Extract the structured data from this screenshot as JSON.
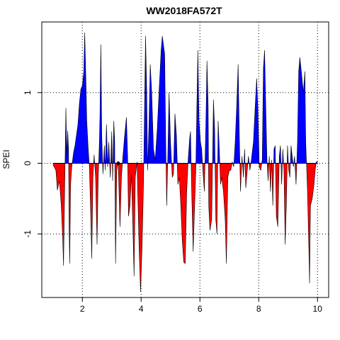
{
  "chart_data": {
    "type": "area",
    "title": "WW2018FA572T",
    "xlabel": "",
    "ylabel": "SPEI",
    "xlim": [
      0.62,
      10.38
    ],
    "ylim": [
      -1.9,
      2.0
    ],
    "x_ticks": [
      2,
      4,
      6,
      8,
      10
    ],
    "y_ticks": [
      -1,
      0,
      1
    ],
    "grid": "dotted, at ticks",
    "positive_color": "#0000ff",
    "negative_color": "#ff0000",
    "zero_line_color": "#000000",
    "series": [
      {
        "values": [
          [
            1.0,
            -0.02
          ],
          [
            1.1,
            -0.1
          ],
          [
            1.15,
            -0.38
          ],
          [
            1.22,
            -0.25
          ],
          [
            1.28,
            -0.58
          ],
          [
            1.33,
            -1.05
          ],
          [
            1.36,
            -1.45
          ],
          [
            1.4,
            -0.3
          ],
          [
            1.44,
            0.78
          ],
          [
            1.47,
            0.1
          ],
          [
            1.5,
            0.46
          ],
          [
            1.53,
            0.2
          ],
          [
            1.55,
            -0.9
          ],
          [
            1.57,
            -1.42
          ],
          [
            1.6,
            -0.3
          ],
          [
            1.64,
            -0.05
          ],
          [
            1.7,
            0.15
          ],
          [
            1.75,
            0.25
          ],
          [
            1.85,
            0.55
          ],
          [
            1.9,
            0.85
          ],
          [
            1.95,
            1.05
          ],
          [
            2.0,
            1.1
          ],
          [
            2.05,
            1.3
          ],
          [
            2.08,
            1.85
          ],
          [
            2.12,
            1.2
          ],
          [
            2.15,
            0.6
          ],
          [
            2.2,
            0.2
          ],
          [
            2.24,
            -0.05
          ],
          [
            2.28,
            -0.65
          ],
          [
            2.32,
            -1.35
          ],
          [
            2.36,
            -0.2
          ],
          [
            2.4,
            0.12
          ],
          [
            2.45,
            -0.2
          ],
          [
            2.5,
            -1.15
          ],
          [
            2.54,
            -0.2
          ],
          [
            2.58,
            0.3
          ],
          [
            2.6,
            0.7
          ],
          [
            2.63,
            1.68
          ],
          [
            2.66,
            0.4
          ],
          [
            2.7,
            -0.15
          ],
          [
            2.75,
            0.25
          ],
          [
            2.78,
            -0.1
          ],
          [
            2.82,
            0.55
          ],
          [
            2.86,
            -0.05
          ],
          [
            2.9,
            0.3
          ],
          [
            2.95,
            -0.2
          ],
          [
            3.0,
            0.45
          ],
          [
            3.03,
            -0.25
          ],
          [
            3.07,
            0.6
          ],
          [
            3.1,
            0.3
          ],
          [
            3.13,
            -1.42
          ],
          [
            3.17,
            -0.1
          ],
          [
            3.22,
            0.02
          ],
          [
            3.28,
            -0.9
          ],
          [
            3.33,
            -0.2
          ],
          [
            3.38,
            0.1
          ],
          [
            3.44,
            0.4
          ],
          [
            3.5,
            0.65
          ],
          [
            3.54,
            0.1
          ],
          [
            3.57,
            -0.75
          ],
          [
            3.62,
            -0.6
          ],
          [
            3.67,
            -0.15
          ],
          [
            3.73,
            -1.1
          ],
          [
            3.76,
            -1.6
          ],
          [
            3.8,
            -0.2
          ],
          [
            3.86,
            0.02
          ],
          [
            3.93,
            -1.2
          ],
          [
            3.98,
            -1.82
          ],
          [
            4.03,
            -1.2
          ],
          [
            4.08,
            -0.3
          ],
          [
            4.12,
            0.9
          ],
          [
            4.15,
            1.8
          ],
          [
            4.19,
            1.0
          ],
          [
            4.22,
            -0.1
          ],
          [
            4.27,
            0.6
          ],
          [
            4.31,
            1.4
          ],
          [
            4.36,
            1.0
          ],
          [
            4.42,
            0.2
          ],
          [
            4.48,
            0.05
          ],
          [
            4.55,
            0.5
          ],
          [
            4.62,
            1.1
          ],
          [
            4.68,
            1.6
          ],
          [
            4.72,
            1.8
          ],
          [
            4.8,
            1.55
          ],
          [
            4.84,
            0.2
          ],
          [
            4.87,
            -0.6
          ],
          [
            4.9,
            -0.05
          ],
          [
            4.95,
            1.0
          ],
          [
            5.0,
            0.3
          ],
          [
            5.06,
            -0.2
          ],
          [
            5.1,
            -0.15
          ],
          [
            5.15,
            0.7
          ],
          [
            5.2,
            0.4
          ],
          [
            5.25,
            -0.3
          ],
          [
            5.3,
            -0.2
          ],
          [
            5.35,
            -0.6
          ],
          [
            5.4,
            -1.1
          ],
          [
            5.45,
            -1.4
          ],
          [
            5.5,
            -1.42
          ],
          [
            5.55,
            -0.4
          ],
          [
            5.6,
            0.05
          ],
          [
            5.65,
            0.35
          ],
          [
            5.68,
            0.45
          ],
          [
            5.72,
            -0.4
          ],
          [
            5.77,
            -1.25
          ],
          [
            5.82,
            -0.6
          ],
          [
            5.86,
            -0.1
          ],
          [
            5.9,
            0.9
          ],
          [
            5.93,
            1.6
          ],
          [
            5.97,
            0.6
          ],
          [
            6.02,
            0.3
          ],
          [
            6.06,
            0.2
          ],
          [
            6.1,
            -0.1
          ],
          [
            6.15,
            -0.4
          ],
          [
            6.2,
            0.5
          ],
          [
            6.24,
            1.45
          ],
          [
            6.28,
            0.8
          ],
          [
            6.3,
            -0.6
          ],
          [
            6.34,
            -0.95
          ],
          [
            6.4,
            -0.8
          ],
          [
            6.46,
            0.9
          ],
          [
            6.5,
            0.5
          ],
          [
            6.54,
            -0.8
          ],
          [
            6.58,
            -1.0
          ],
          [
            6.62,
            0.6
          ],
          [
            6.66,
            0.2
          ],
          [
            6.7,
            -0.3
          ],
          [
            6.74,
            -0.2
          ],
          [
            6.8,
            -0.4
          ],
          [
            6.86,
            -0.8
          ],
          [
            6.9,
            -1.42
          ],
          [
            6.95,
            -0.2
          ],
          [
            7.0,
            -0.1
          ],
          [
            7.05,
            -0.1
          ],
          [
            7.1,
            0.02
          ],
          [
            7.15,
            -0.05
          ],
          [
            7.2,
            0.3
          ],
          [
            7.25,
            0.8
          ],
          [
            7.3,
            1.4
          ],
          [
            7.34,
            0.4
          ],
          [
            7.38,
            -0.4
          ],
          [
            7.43,
            0.1
          ],
          [
            7.48,
            -0.2
          ],
          [
            7.52,
            0.2
          ],
          [
            7.56,
            -0.35
          ],
          [
            7.6,
            -0.15
          ],
          [
            7.65,
            0.1
          ],
          [
            7.7,
            -0.1
          ],
          [
            7.75,
            0.05
          ],
          [
            7.82,
            0.3
          ],
          [
            7.88,
            0.8
          ],
          [
            7.93,
            1.2
          ],
          [
            7.97,
            0.8
          ],
          [
            8.02,
            -0.05
          ],
          [
            8.07,
            -0.1
          ],
          [
            8.12,
            0.05
          ],
          [
            8.16,
            1.35
          ],
          [
            8.2,
            1.6
          ],
          [
            8.24,
            0.8
          ],
          [
            8.28,
            0.05
          ],
          [
            8.32,
            -0.25
          ],
          [
            8.36,
            0.1
          ],
          [
            8.4,
            -0.4
          ],
          [
            8.44,
            0.05
          ],
          [
            8.48,
            -0.6
          ],
          [
            8.52,
            0.2
          ],
          [
            8.56,
            0.25
          ],
          [
            8.6,
            -0.75
          ],
          [
            8.65,
            -0.9
          ],
          [
            8.7,
            0.1
          ],
          [
            8.74,
            0.25
          ],
          [
            8.78,
            -0.3
          ],
          [
            8.82,
            0.2
          ],
          [
            8.86,
            -0.1
          ],
          [
            8.9,
            -1.15
          ],
          [
            8.94,
            -0.6
          ],
          [
            8.98,
            0.25
          ],
          [
            9.02,
            -0.1
          ],
          [
            9.06,
            -0.2
          ],
          [
            9.1,
            0.25
          ],
          [
            9.14,
            0.1
          ],
          [
            9.18,
            -0.05
          ],
          [
            9.22,
            0.1
          ],
          [
            9.27,
            -0.3
          ],
          [
            9.32,
            0.3
          ],
          [
            9.36,
            1.3
          ],
          [
            9.4,
            1.5
          ],
          [
            9.45,
            1.3
          ],
          [
            9.52,
            1.0
          ],
          [
            9.57,
            1.3
          ],
          [
            9.6,
            0.3
          ],
          [
            9.63,
            -0.05
          ],
          [
            9.66,
            -0.4
          ],
          [
            9.7,
            -1.1
          ],
          [
            9.73,
            -1.7
          ],
          [
            9.76,
            -0.6
          ],
          [
            9.82,
            -0.5
          ],
          [
            9.88,
            -0.3
          ],
          [
            9.92,
            -0.1
          ],
          [
            9.96,
            0.02
          ],
          [
            10.0,
            0.02
          ]
        ]
      }
    ],
    "annotations": [
      {
        "type": "point",
        "x": 3.22,
        "y": 0.0
      }
    ]
  }
}
